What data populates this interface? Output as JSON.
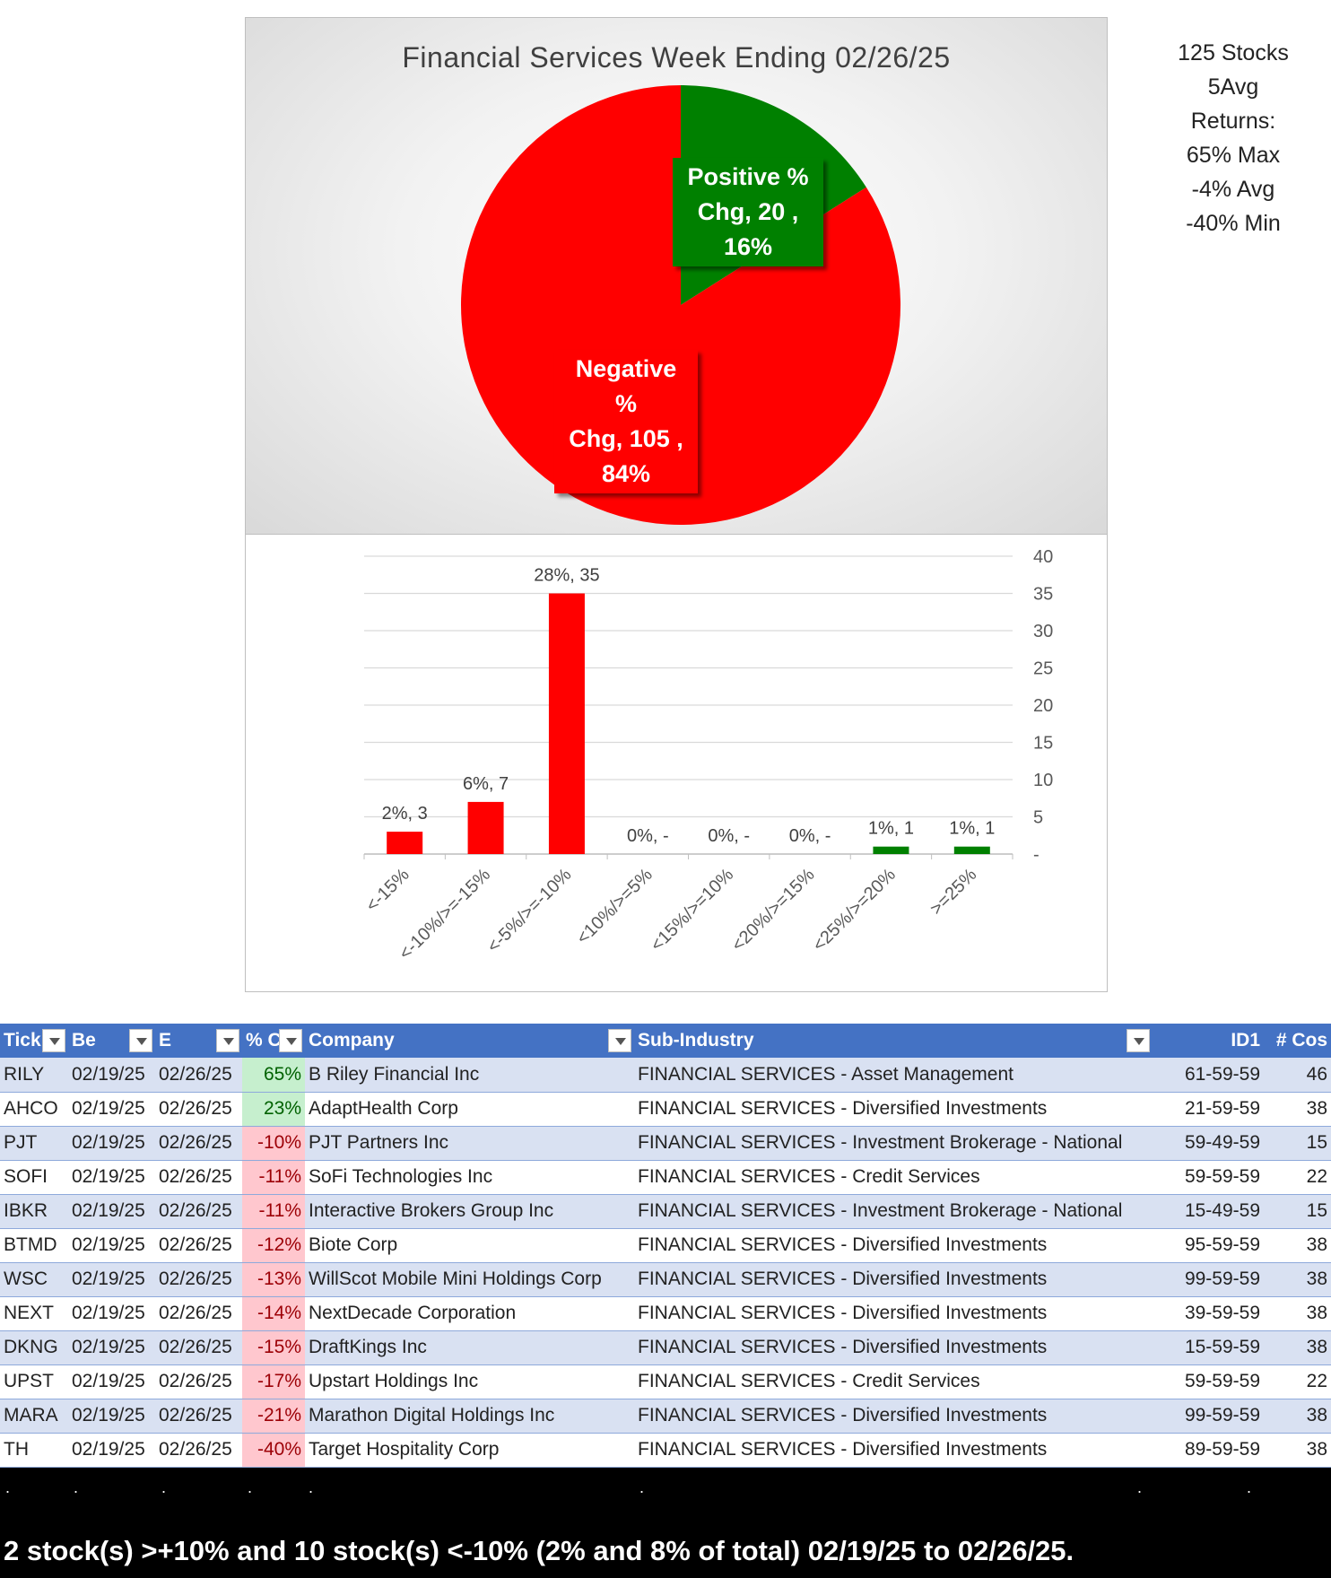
{
  "stats": {
    "lines": [
      "125 Stocks",
      "5Avg",
      "Returns:",
      "65% Max",
      "-4% Avg",
      "-40% Min"
    ]
  },
  "chart_data": [
    {
      "type": "pie",
      "title": "Financial Services Week Ending 02/26/25",
      "slices": [
        {
          "name": "Positive % Chg",
          "value": 20,
          "percent": "16%",
          "color": "#008000"
        },
        {
          "name": "Negative % Chg",
          "value": 105,
          "percent": "84%",
          "color": "#ff0000"
        }
      ],
      "labels": {
        "positive": [
          "Positive %",
          "Chg,  20 ,",
          "16%"
        ],
        "negative": [
          "Negative %",
          "Chg,  105 ,",
          "84%"
        ]
      }
    },
    {
      "type": "bar",
      "categories": [
        "<-15%",
        "<-10%/>=-15%",
        "<-5%/>=-10%",
        "<10%/>=5%",
        "<15%/>=10%",
        "<20%/>=15%",
        "<25%/>=20%",
        ">=25%"
      ],
      "values": [
        3,
        7,
        35,
        0,
        0,
        0,
        1,
        1
      ],
      "data_labels": [
        "2%,  3",
        "6%,  7",
        "28%,  35",
        "0%,  -",
        "0%,  -",
        "0%,  -",
        "1%,  1",
        "1%,  1"
      ],
      "colors": [
        "#ff0000",
        "#ff0000",
        "#ff0000",
        "#ff0000",
        "#ff0000",
        "#ff0000",
        "#008000",
        "#008000"
      ],
      "ylim": [
        0,
        40
      ],
      "yticks": [
        "-",
        "5",
        "10",
        "15",
        "20",
        "25",
        "30",
        "35",
        "40"
      ],
      "ytick_values": [
        0,
        5,
        10,
        15,
        20,
        25,
        30,
        35,
        40
      ],
      "grid": true
    }
  ],
  "table": {
    "headers": [
      "Tick",
      "Be",
      "E",
      "% C",
      "Company",
      "Sub-Industry",
      "ID1",
      "# Cos"
    ],
    "rows": [
      [
        "RILY",
        "02/19/25",
        "02/26/25",
        "65%",
        "B Riley Financial Inc",
        "FINANCIAL SERVICES - Asset Management",
        "61-59-59",
        "46"
      ],
      [
        "AHCO",
        "02/19/25",
        "02/26/25",
        "23%",
        "AdaptHealth Corp",
        "FINANCIAL SERVICES - Diversified Investments",
        "21-59-59",
        "38"
      ],
      [
        "PJT",
        "02/19/25",
        "02/26/25",
        "-10%",
        "PJT Partners Inc",
        "FINANCIAL SERVICES - Investment Brokerage - National",
        "59-49-59",
        "15"
      ],
      [
        "SOFI",
        "02/19/25",
        "02/26/25",
        "-11%",
        "SoFi Technologies Inc",
        "FINANCIAL SERVICES - Credit Services",
        "59-59-59",
        "22"
      ],
      [
        "IBKR",
        "02/19/25",
        "02/26/25",
        "-11%",
        "Interactive Brokers Group Inc",
        "FINANCIAL SERVICES - Investment Brokerage - National",
        "15-49-59",
        "15"
      ],
      [
        "BTMD",
        "02/19/25",
        "02/26/25",
        "-12%",
        "Biote Corp",
        "FINANCIAL SERVICES - Diversified Investments",
        "95-59-59",
        "38"
      ],
      [
        "WSC",
        "02/19/25",
        "02/26/25",
        "-13%",
        "WillScot Mobile Mini Holdings Corp",
        "FINANCIAL SERVICES - Diversified Investments",
        "99-59-59",
        "38"
      ],
      [
        "NEXT",
        "02/19/25",
        "02/26/25",
        "-14%",
        "NextDecade Corporation",
        "FINANCIAL SERVICES - Diversified Investments",
        "39-59-59",
        "38"
      ],
      [
        "DKNG",
        "02/19/25",
        "02/26/25",
        "-15%",
        "DraftKings Inc",
        "FINANCIAL SERVICES - Diversified Investments",
        "15-59-59",
        "38"
      ],
      [
        "UPST",
        "02/19/25",
        "02/26/25",
        "-17%",
        "Upstart Holdings Inc",
        "FINANCIAL SERVICES - Credit Services",
        "59-59-59",
        "22"
      ],
      [
        "MARA",
        "02/19/25",
        "02/26/25",
        "-21%",
        "Marathon Digital Holdings Inc",
        "FINANCIAL SERVICES - Diversified Investments",
        "99-59-59",
        "38"
      ],
      [
        "TH",
        "02/19/25",
        "02/26/25",
        "-40%",
        "Target Hospitality Corp",
        "FINANCIAL SERVICES - Diversified Investments",
        "89-59-59",
        "38"
      ]
    ]
  },
  "summary": "2 stock(s) >+10% and 10 stock(s) <-10% (2% and 8% of total) 02/19/25 to 02/26/25."
}
